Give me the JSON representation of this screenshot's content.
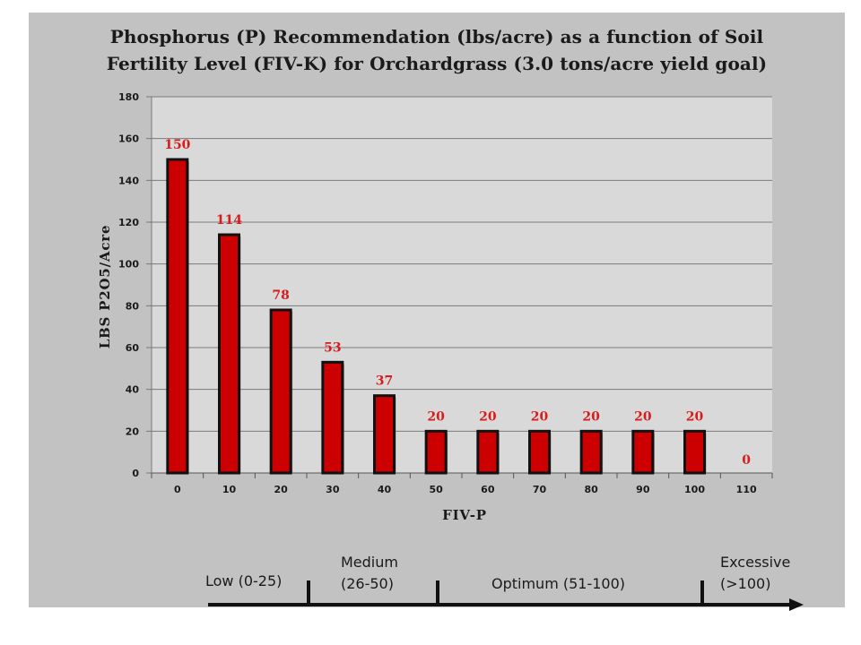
{
  "chart_data": {
    "type": "bar",
    "title": [
      "Phosphorus (P) Recommendation (lbs/acre) as a function of Soil",
      "Fertility Level (FIV-K) for Orchardgrass (3.0 tons/acre yield goal)"
    ],
    "xlabel": "FIV-P",
    "ylabel": "LBS  P2O5/Acre",
    "categories": [
      "0",
      "10",
      "20",
      "30",
      "40",
      "50",
      "60",
      "70",
      "80",
      "90",
      "100",
      "110"
    ],
    "values": [
      150,
      114,
      78,
      53,
      37,
      20,
      20,
      20,
      20,
      20,
      20,
      0
    ],
    "data_labels": [
      "150",
      "114",
      "78",
      "53",
      "37",
      "20",
      "20",
      "20",
      "20",
      "20",
      "20",
      "0"
    ],
    "ylim": [
      0,
      180
    ],
    "yticks": [
      0,
      20,
      40,
      60,
      80,
      100,
      120,
      140,
      160,
      180
    ],
    "grid": true,
    "colors": {
      "bar": "#cc0000",
      "bar_outline": "#111111",
      "data_label": "#d81b1b",
      "plot_bg": "#d9d9d9",
      "panel_bg": "#c2c2c2"
    }
  },
  "fertility_ranges": {
    "low": [
      "Low (0-25)"
    ],
    "medium": [
      "Medium",
      "(26-50)"
    ],
    "optimum": [
      "Optimum  (51-100)"
    ],
    "excessive": [
      "Excessive",
      "(>100)"
    ]
  }
}
